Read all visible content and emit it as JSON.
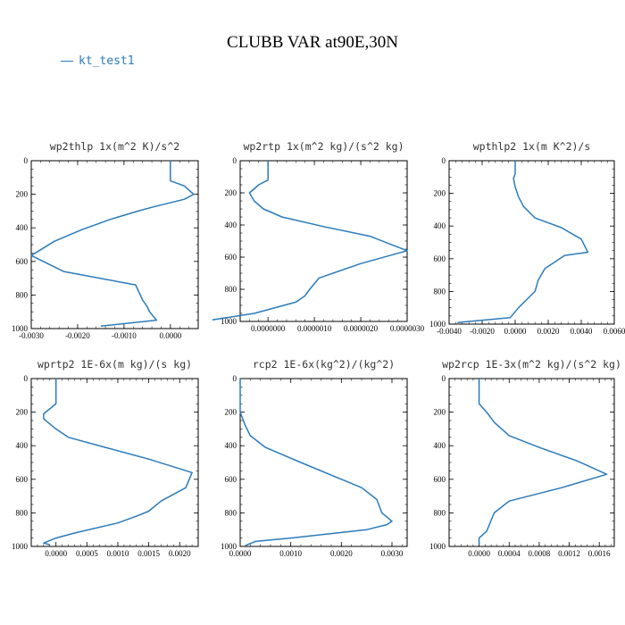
{
  "title": "CLUBB VAR at90E,30N",
  "legend": {
    "series_name": "kt_test1",
    "color": "#2b7bba"
  },
  "chart_data": [
    {
      "type": "line",
      "title": "wp2thlp   1x(m^2 K)/s^2",
      "series": [
        {
          "name": "kt_test1",
          "x": [
            -0.0015,
            -0.0003,
            -0.00045,
            -0.0005,
            -0.0006,
            -0.00075,
            -0.0023,
            -0.003,
            -0.0025,
            -0.0019,
            -0.0013,
            -0.0007,
            -0.0003,
            0.0003,
            0.0005,
            0.0003,
            0.0,
            0.0
          ],
          "y": [
            985,
            950,
            900,
            870,
            830,
            740,
            660,
            565,
            480,
            410,
            350,
            300,
            270,
            230,
            200,
            150,
            120,
            0
          ]
        }
      ],
      "xlim": [
        -0.003,
        0.0006
      ],
      "ylim": [
        1000,
        0
      ],
      "xticks": [
        -0.003,
        -0.002,
        -0.001,
        0.0
      ],
      "xticklabels": [
        "-0.0030",
        "-0.0020",
        "-0.0010",
        "0.0000"
      ],
      "yticks": [
        0,
        200,
        400,
        600,
        800,
        1000
      ],
      "yticklabels": [
        "0",
        "200",
        "400",
        "600",
        "800",
        "1000"
      ]
    },
    {
      "type": "line",
      "title": "wp2rtp   1x(m^2 kg)/(s^2 kg)",
      "series": [
        {
          "name": "kt_test1",
          "x": [
            -1.2e-06,
            -3e-07,
            6e-07,
            8e-07,
            9e-07,
            1.1e-06,
            2e-06,
            3e-06,
            2.2e-06,
            1.2e-06,
            3e-07,
            -1e-07,
            -3e-07,
            -4e-07,
            -2e-07,
            0.0,
            0.0
          ],
          "y": [
            990,
            950,
            880,
            840,
            800,
            730,
            640,
            560,
            470,
            410,
            350,
            300,
            250,
            200,
            150,
            120,
            0
          ]
        }
      ],
      "xlim": [
        -6e-07,
        3e-06
      ],
      "ylim": [
        1000,
        0
      ],
      "xticks": [
        0.0,
        1e-06,
        2e-06,
        3e-06
      ],
      "xticklabels": [
        "0.0000000",
        "0.0000010",
        "0.0000020",
        "0.0000030"
      ],
      "yticks": [
        0,
        200,
        400,
        600,
        800,
        1000
      ],
      "yticklabels": [
        "0",
        "200",
        "400",
        "600",
        "800",
        "1000"
      ]
    },
    {
      "type": "line",
      "title": "wpthlp2   1x(m K^2)/s",
      "series": [
        {
          "name": "kt_test1",
          "x": [
            -0.0035,
            -0.0003,
            0.0002,
            0.0006,
            0.0009,
            0.0012,
            0.0014,
            0.0018,
            0.003,
            0.0044,
            0.004,
            0.0028,
            0.0012,
            0.0005,
            0.0002,
            0.0,
            -0.0001,
            0.0,
            0.0
          ],
          "y": [
            990,
            960,
            900,
            860,
            830,
            800,
            730,
            660,
            580,
            560,
            480,
            410,
            350,
            280,
            220,
            160,
            110,
            80,
            0
          ]
        }
      ],
      "xlim": [
        -0.004,
        0.006
      ],
      "ylim": [
        1000,
        0
      ],
      "xticks": [
        -0.004,
        -0.002,
        0.0,
        0.002,
        0.004,
        0.006
      ],
      "xticklabels": [
        "-0.0040",
        "-0.0020",
        "0.0000",
        "0.0020",
        "0.0040",
        "0.0060"
      ],
      "yticks": [
        0,
        200,
        400,
        600,
        800,
        1000
      ],
      "yticklabels": [
        "0",
        "200",
        "400",
        "600",
        "800",
        "1000"
      ]
    },
    {
      "type": "line",
      "title": "wprtp2   1E-6x(m kg)/(s kg)",
      "series": [
        {
          "name": "kt_test1",
          "x": [
            -0.0001,
            -0.0002,
            0.0,
            0.0003,
            0.001,
            0.0013,
            0.0015,
            0.0017,
            0.0021,
            0.0022,
            0.0015,
            0.0008,
            0.0002,
            0.0,
            -0.0001,
            -0.0002,
            -0.0002,
            0.0,
            0.0
          ],
          "y": [
            990,
            980,
            950,
            920,
            860,
            820,
            790,
            730,
            650,
            560,
            480,
            410,
            350,
            300,
            270,
            240,
            210,
            150,
            0
          ]
        }
      ],
      "xlim": [
        -0.0004,
        0.0023
      ],
      "ylim": [
        1000,
        0
      ],
      "xticks": [
        0.0,
        0.0005,
        0.001,
        0.0015,
        0.002
      ],
      "xticklabels": [
        "0.0000",
        "0.0005",
        "0.0010",
        "0.0015",
        "0.0020"
      ],
      "yticks": [
        0,
        200,
        400,
        600,
        800,
        1000
      ],
      "yticklabels": [
        "0",
        "200",
        "400",
        "600",
        "800",
        "1000"
      ]
    },
    {
      "type": "line",
      "title": "rcp2   1E-6x(kg^2)/(kg^2)",
      "series": [
        {
          "name": "kt_test1",
          "x": [
            0.0001,
            0.0003,
            0.001,
            0.0019,
            0.0025,
            0.0029,
            0.003,
            0.0028,
            0.0027,
            0.0024,
            0.0012,
            0.0005,
            0.0002,
            0.0001,
            0.0,
            0.0
          ],
          "y": [
            995,
            970,
            950,
            920,
            900,
            870,
            850,
            800,
            720,
            650,
            500,
            410,
            340,
            280,
            200,
            0
          ]
        }
      ],
      "xlim": [
        0.0,
        0.0033
      ],
      "ylim": [
        1000,
        0
      ],
      "xticks": [
        0.0,
        0.001,
        0.002,
        0.003
      ],
      "xticklabels": [
        "0.0000",
        "0.0010",
        "0.0020",
        "0.0030"
      ],
      "yticks": [
        0,
        200,
        400,
        600,
        800,
        1000
      ],
      "yticklabels": [
        "0",
        "200",
        "400",
        "600",
        "800",
        "1000"
      ]
    },
    {
      "type": "line",
      "title": "wp2rcp   1E-3x(m^2 kg)/(s^2 kg)",
      "series": [
        {
          "name": "kt_test1",
          "x": [
            0.0,
            0.0,
            0.0001,
            0.0002,
            0.0004,
            0.0011,
            0.0017,
            0.0013,
            0.0008,
            0.0004,
            0.0002,
            0.0001,
            0.0,
            0.0
          ],
          "y": [
            990,
            950,
            910,
            800,
            730,
            650,
            570,
            490,
            410,
            340,
            260,
            200,
            150,
            0
          ]
        }
      ],
      "xlim": [
        -0.0004,
        0.0018
      ],
      "ylim": [
        1000,
        0
      ],
      "xticks": [
        0.0,
        0.0004,
        0.0008,
        0.0012,
        0.0016
      ],
      "xticklabels": [
        "0.0000",
        "0.0004",
        "0.0008",
        "0.0012",
        "0.0016"
      ],
      "yticks": [
        0,
        200,
        400,
        600,
        800,
        1000
      ],
      "yticklabels": [
        "0",
        "200",
        "400",
        "600",
        "800",
        "1000"
      ]
    }
  ]
}
